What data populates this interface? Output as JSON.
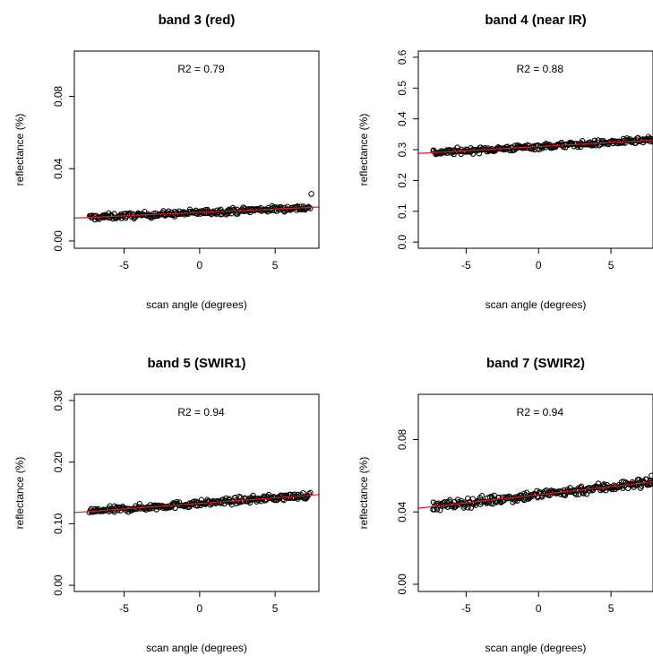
{
  "figure": {
    "point_color": "#000000",
    "fit_color": "#e41a1c"
  },
  "chart_data": [
    {
      "type": "scatter",
      "title": "band 3 (red)",
      "xlabel": "scan angle (degrees)",
      "ylabel": "reflectance (%)",
      "annotation": "R2 = 0.79",
      "xlim": [
        -8.3,
        7.9
      ],
      "ylim": [
        -0.004,
        0.105
      ],
      "xticks": [
        -5,
        0,
        5
      ],
      "xtick_labels": [
        "-5",
        "0",
        "5"
      ],
      "yticks": [
        0.0,
        0.04,
        0.08
      ],
      "ytick_labels": [
        "0.00",
        "0.04",
        "0.08"
      ],
      "x_range": [
        -7.3,
        7.3
      ],
      "fit": {
        "slope": 0.00038,
        "intercept": 0.0158
      },
      "spread": 0.0028,
      "outliers": [
        {
          "x": 7.4,
          "y": 0.026
        }
      ]
    },
    {
      "type": "scatter",
      "title": "band 4 (near IR)",
      "xlabel": "scan angle (degrees)",
      "ylabel": "reflectance (%)",
      "annotation": "R2 = 0.88",
      "xlim": [
        -8.3,
        7.9
      ],
      "ylim": [
        -0.02,
        0.62
      ],
      "xticks": [
        -5,
        0,
        5
      ],
      "xtick_labels": [
        "-5",
        "0",
        "5"
      ],
      "yticks": [
        0.0,
        0.1,
        0.2,
        0.3,
        0.4,
        0.5,
        0.6
      ],
      "ytick_labels": [
        "0.0",
        "0.1",
        "0.2",
        "0.3",
        "0.4",
        "0.5",
        "0.6"
      ],
      "x_range": [
        -7.3,
        7.9
      ],
      "fit": {
        "slope": 0.0027,
        "intercept": 0.31
      },
      "spread": 0.016,
      "outliers": []
    },
    {
      "type": "scatter",
      "title": "band 5 (SWIR1)",
      "xlabel": "scan angle (degrees)",
      "ylabel": "reflectance (%)",
      "annotation": "R2 = 0.94",
      "xlim": [
        -8.3,
        7.9
      ],
      "ylim": [
        -0.01,
        0.31
      ],
      "xticks": [
        -5,
        0,
        5
      ],
      "xtick_labels": [
        "-5",
        "0",
        "5"
      ],
      "yticks": [
        0.0,
        0.1,
        0.2,
        0.3
      ],
      "ytick_labels": [
        "0.00",
        "0.10",
        "0.20",
        "0.30"
      ],
      "x_range": [
        -7.3,
        7.3
      ],
      "fit": {
        "slope": 0.0018,
        "intercept": 0.133
      },
      "spread": 0.009,
      "outliers": []
    },
    {
      "type": "scatter",
      "title": "band 7 (SWIR2)",
      "xlabel": "scan angle (degrees)",
      "ylabel": "reflectance (%)",
      "annotation": "R2 = 0.94",
      "xlim": [
        -8.3,
        7.9
      ],
      "ylim": [
        -0.004,
        0.105
      ],
      "xticks": [
        -5,
        0,
        5
      ],
      "xtick_labels": [
        "-5",
        "0",
        "5"
      ],
      "yticks": [
        0.0,
        0.04,
        0.08
      ],
      "ytick_labels": [
        "0.00",
        "0.04",
        "0.08"
      ],
      "x_range": [
        -7.3,
        7.9
      ],
      "fit": {
        "slope": 0.0009,
        "intercept": 0.0495
      },
      "spread": 0.0045,
      "outliers": [
        {
          "x": 7.8,
          "y": 0.06
        }
      ]
    }
  ]
}
